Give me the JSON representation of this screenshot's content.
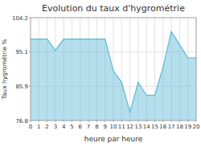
{
  "chart_data": {
    "type": "area",
    "title": "Evolution du taux d'hygrométrie",
    "x_label": "heure par heure",
    "y_label": "Taux hygrométrie %",
    "x": [
      0,
      1,
      2,
      3,
      4,
      5,
      6,
      7,
      8,
      9,
      10,
      11,
      12,
      13,
      14,
      15,
      16,
      17,
      18,
      19,
      20
    ],
    "values": [
      98.5,
      98.5,
      98.5,
      95.5,
      98.5,
      98.5,
      98.5,
      98.5,
      98.5,
      98.5,
      90.0,
      87.0,
      79.0,
      87.0,
      83.5,
      83.5,
      91.0,
      100.5,
      97.0,
      93.5,
      93.5
    ],
    "color": "#5ab8d8",
    "xlim": [
      0,
      20
    ],
    "xticks": [
      0,
      1,
      2,
      3,
      4,
      5,
      6,
      7,
      8,
      9,
      10,
      11,
      12,
      13,
      14,
      15,
      16,
      17,
      18,
      19,
      20
    ],
    "ylim": [
      76.8,
      104.2
    ],
    "yticks": [
      76.8,
      85.9,
      95.1,
      104.2
    ],
    "grid": true
  }
}
